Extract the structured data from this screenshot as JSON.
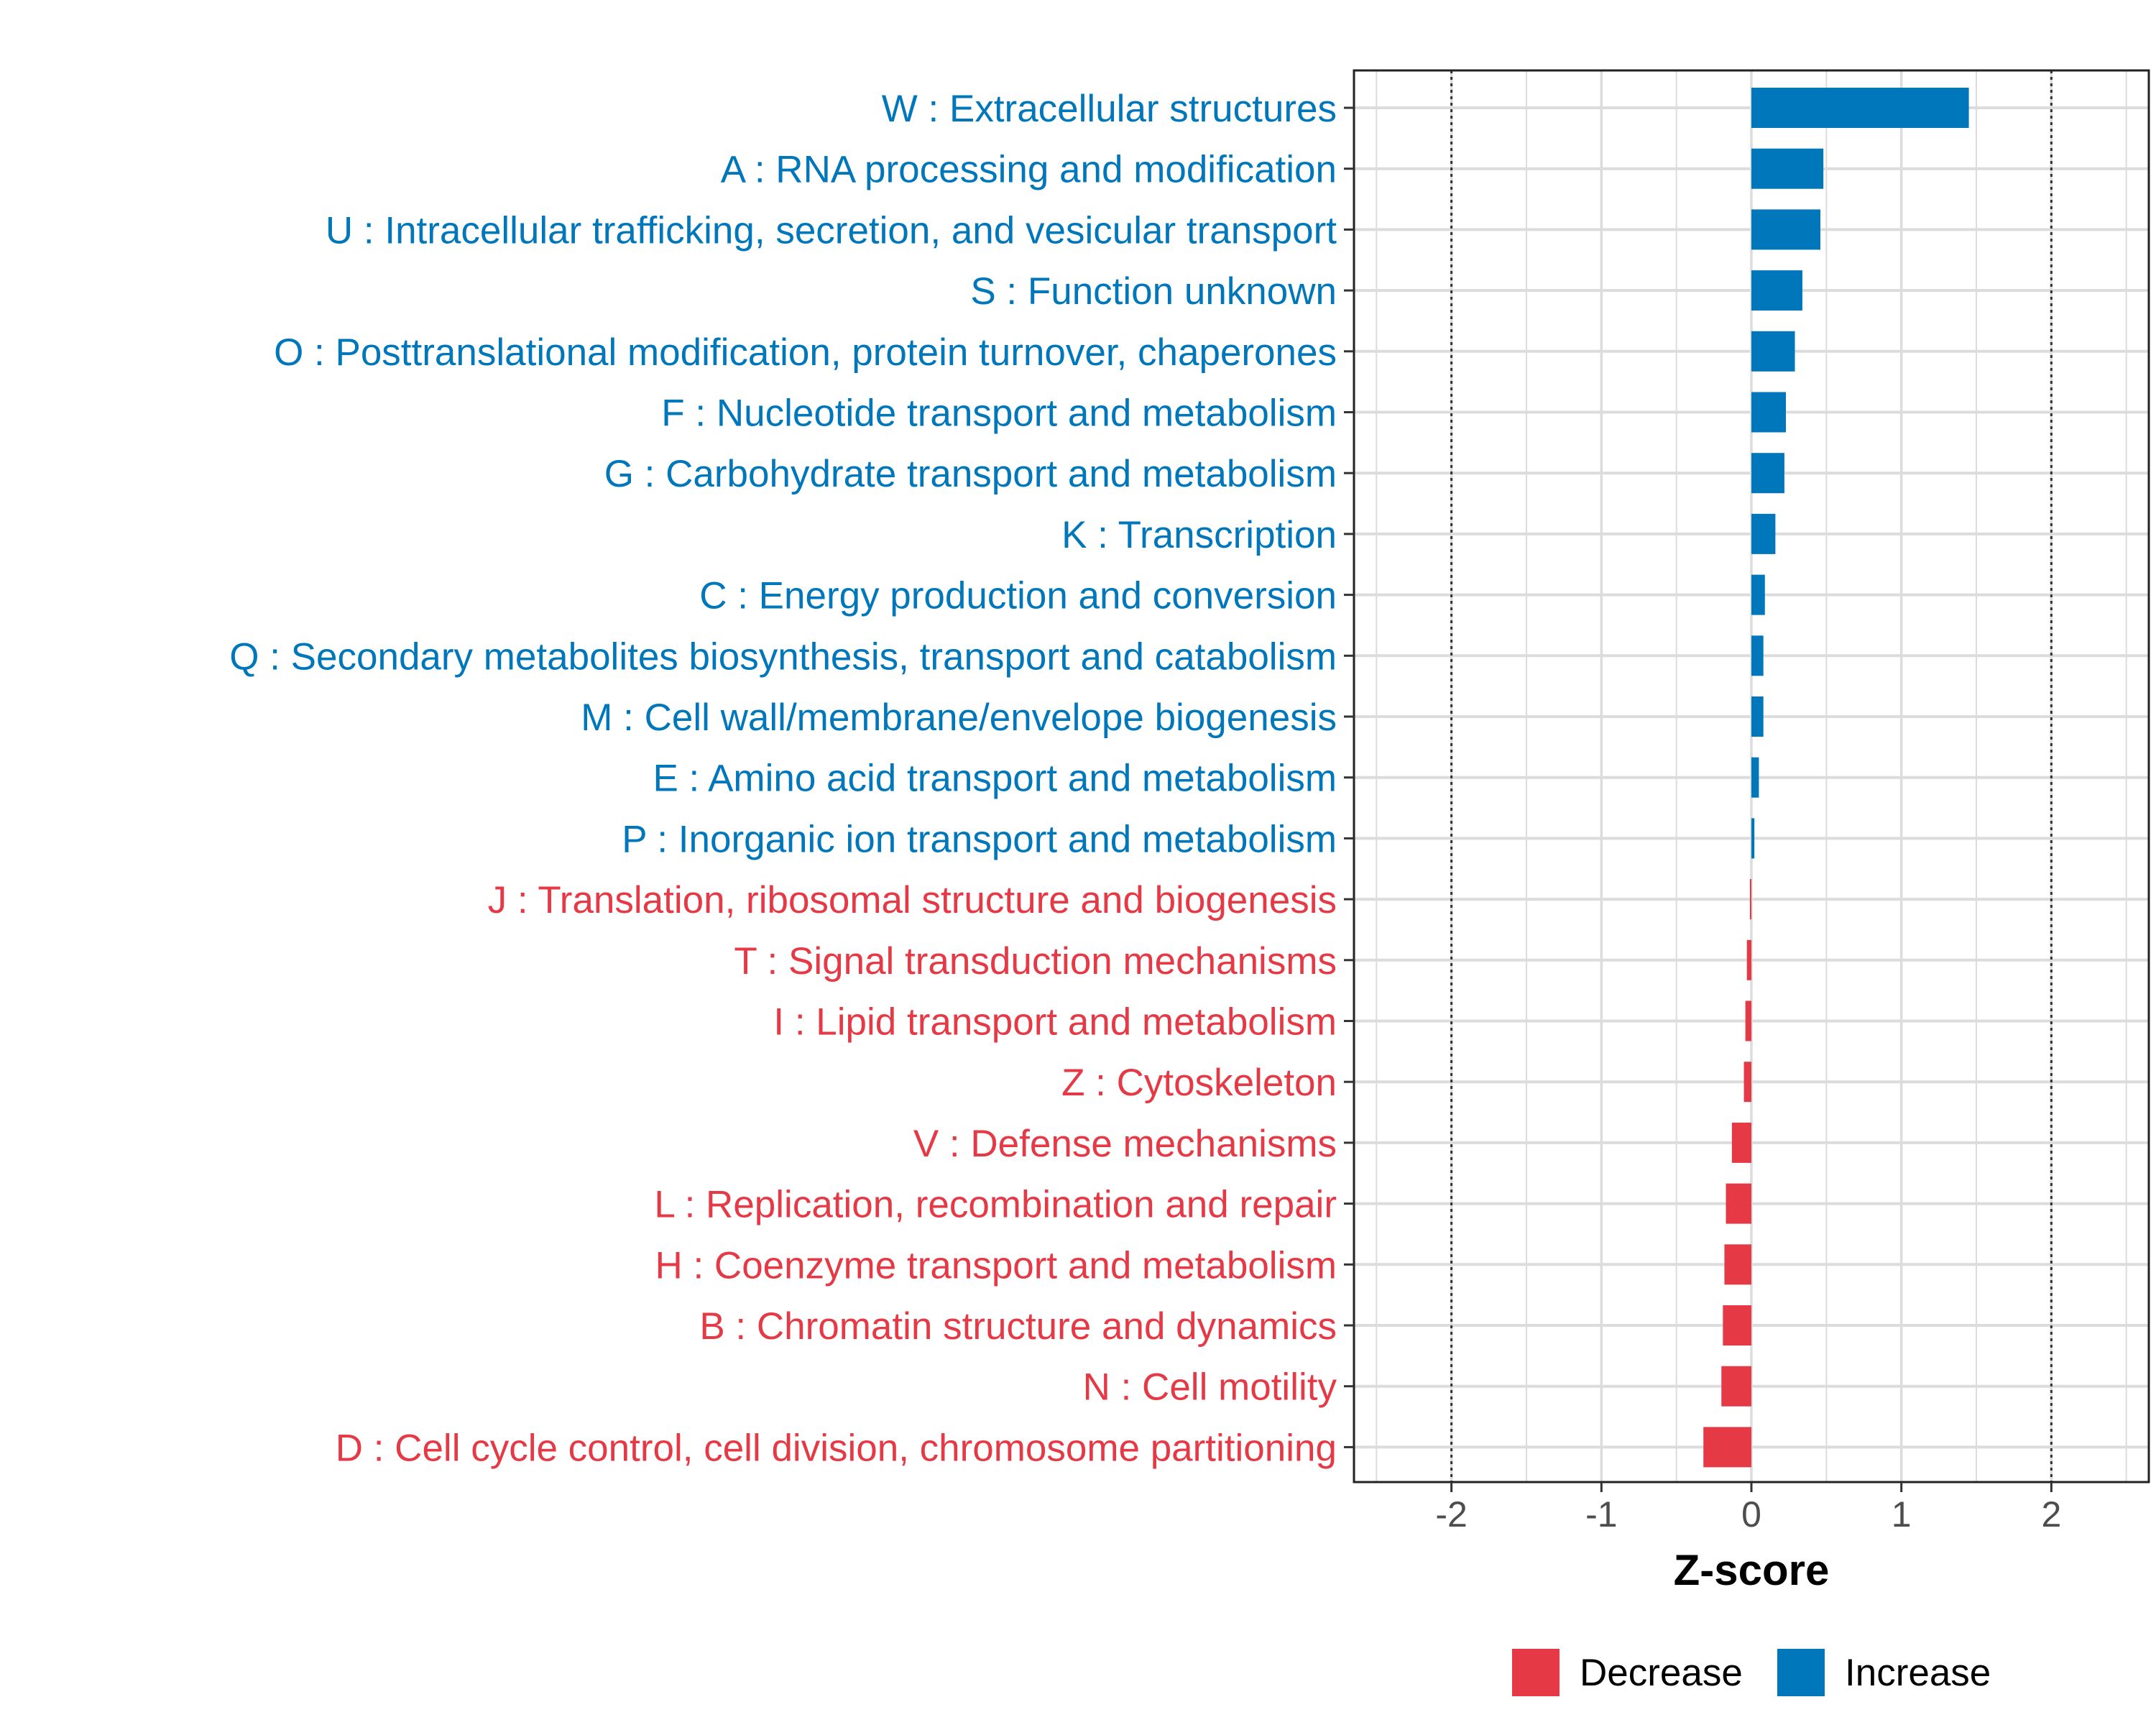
{
  "chart_data": {
    "type": "bar",
    "orientation": "horizontal",
    "xlabel": "Z-score",
    "ylabel": "",
    "xlim": [
      -2.65,
      2.65
    ],
    "x_ticks": [
      "-2",
      "-1",
      "0",
      "1",
      "2"
    ],
    "reference_lines": [
      -2,
      2
    ],
    "grid": true,
    "categories": [
      "W : Extracellular structures",
      "A : RNA processing and modification",
      "U : Intracellular trafficking, secretion, and vesicular transport",
      "S : Function unknown",
      "O : Posttranslational modification, protein turnover, chaperones",
      "F : Nucleotide transport and metabolism",
      "G : Carbohydrate transport and metabolism",
      "K : Transcription",
      "C : Energy production and conversion",
      "Q : Secondary metabolites biosynthesis, transport and catabolism",
      "M : Cell wall/membrane/envelope biogenesis",
      "E : Amino acid transport and metabolism",
      "P : Inorganic ion transport and metabolism",
      "J : Translation, ribosomal structure and biogenesis",
      "T : Signal transduction mechanisms",
      "I : Lipid transport and metabolism",
      "Z : Cytoskeleton",
      "V : Defense mechanisms",
      "L : Replication, recombination and repair",
      "H : Coenzyme transport and metabolism",
      "B : Chromatin structure and dynamics",
      "N : Cell motility",
      "D : Cell cycle control, cell division, chromosome partitioning"
    ],
    "values": [
      1.45,
      0.48,
      0.46,
      0.34,
      0.29,
      0.23,
      0.22,
      0.16,
      0.09,
      0.08,
      0.08,
      0.05,
      0.02,
      -0.01,
      -0.03,
      -0.04,
      -0.05,
      -0.13,
      -0.17,
      -0.18,
      -0.19,
      -0.2,
      -0.32
    ],
    "legend": {
      "placement": "bottom",
      "entries": [
        {
          "name": "Decrease",
          "color": "#E63946"
        },
        {
          "name": "Increase",
          "color": "#0077BB"
        }
      ]
    },
    "colors": {
      "increase": "#0077BB",
      "decrease": "#E63946"
    }
  }
}
